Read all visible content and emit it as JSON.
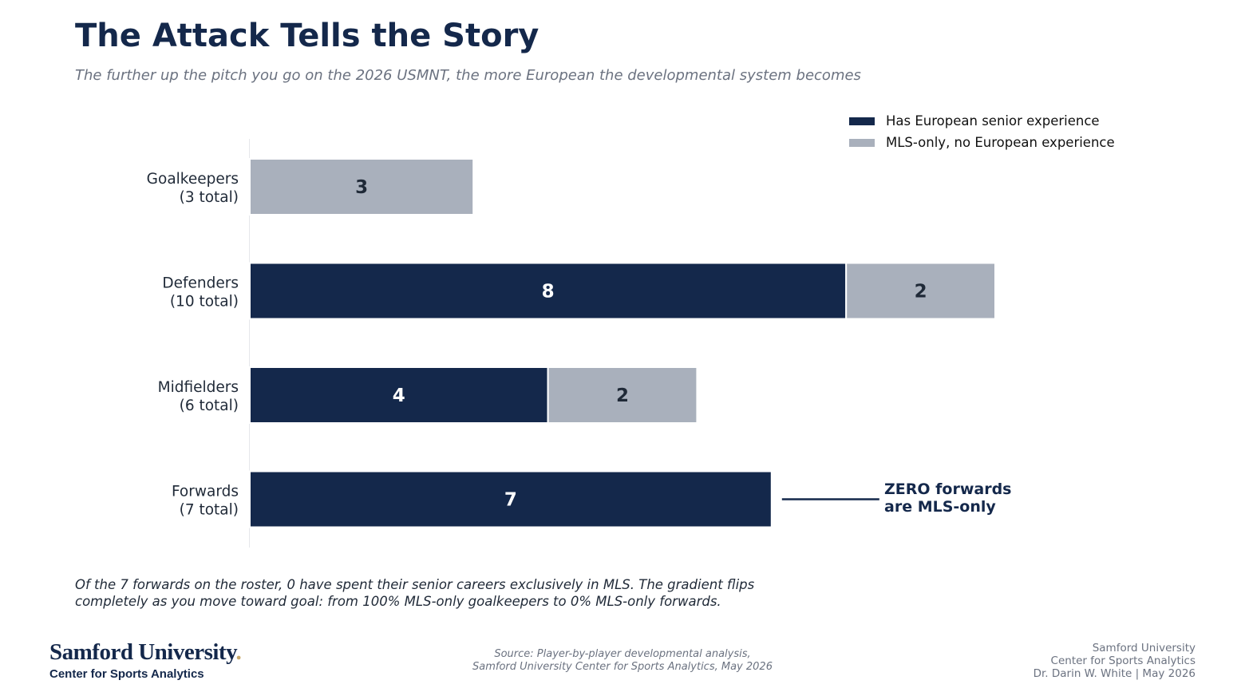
{
  "header": {
    "title": "The Attack Tells the Story",
    "subtitle": "The further up the pitch you go on the 2026 USMNT, the more European the developmental system becomes"
  },
  "colors": {
    "european": "#14284b",
    "mls_only": "#a9b0bc",
    "text_dark": "#1f2937",
    "text_muted": "#6b7280"
  },
  "chart_data": {
    "type": "bar",
    "orientation": "horizontal",
    "stacked": true,
    "categories": [
      [
        "Goalkeepers",
        "(3 total)"
      ],
      [
        "Defenders",
        "(10 total)"
      ],
      [
        "Midfielders",
        "(6 total)"
      ],
      [
        "Forwards",
        "(7 total)"
      ]
    ],
    "series": [
      {
        "name": "Has European senior experience",
        "values": [
          0,
          8,
          4,
          7
        ],
        "color": "#14284b",
        "label_color": "#ffffff"
      },
      {
        "name": "MLS-only, no European experience",
        "values": [
          3,
          2,
          2,
          0
        ],
        "color": "#a9b0bc",
        "label_color": "#1f2937"
      }
    ],
    "xlim": [
      0,
      10
    ],
    "grid": false,
    "legend_position": "top-right",
    "annotation": {
      "category": "Forwards",
      "lines": [
        "ZERO forwards",
        "are MLS-only"
      ]
    }
  },
  "footnote": {
    "lines": [
      "Of the 7 forwards on the roster, 0 have spent their senior careers exclusively in MLS. The gradient flips",
      "completely as you move toward goal: from 100% MLS-only goalkeepers to 0% MLS-only forwards."
    ]
  },
  "footer": {
    "logo_name": "Samford University",
    "logo_dot": ".",
    "logo_sub": "Center for Sports Analytics",
    "source_lines": [
      "Source: Player-by-player developmental analysis,",
      "Samford University Center for Sports Analytics, May 2026"
    ],
    "credit_lines": [
      "Samford University",
      "Center for Sports Analytics",
      "Dr. Darin W. White | May 2026"
    ]
  }
}
